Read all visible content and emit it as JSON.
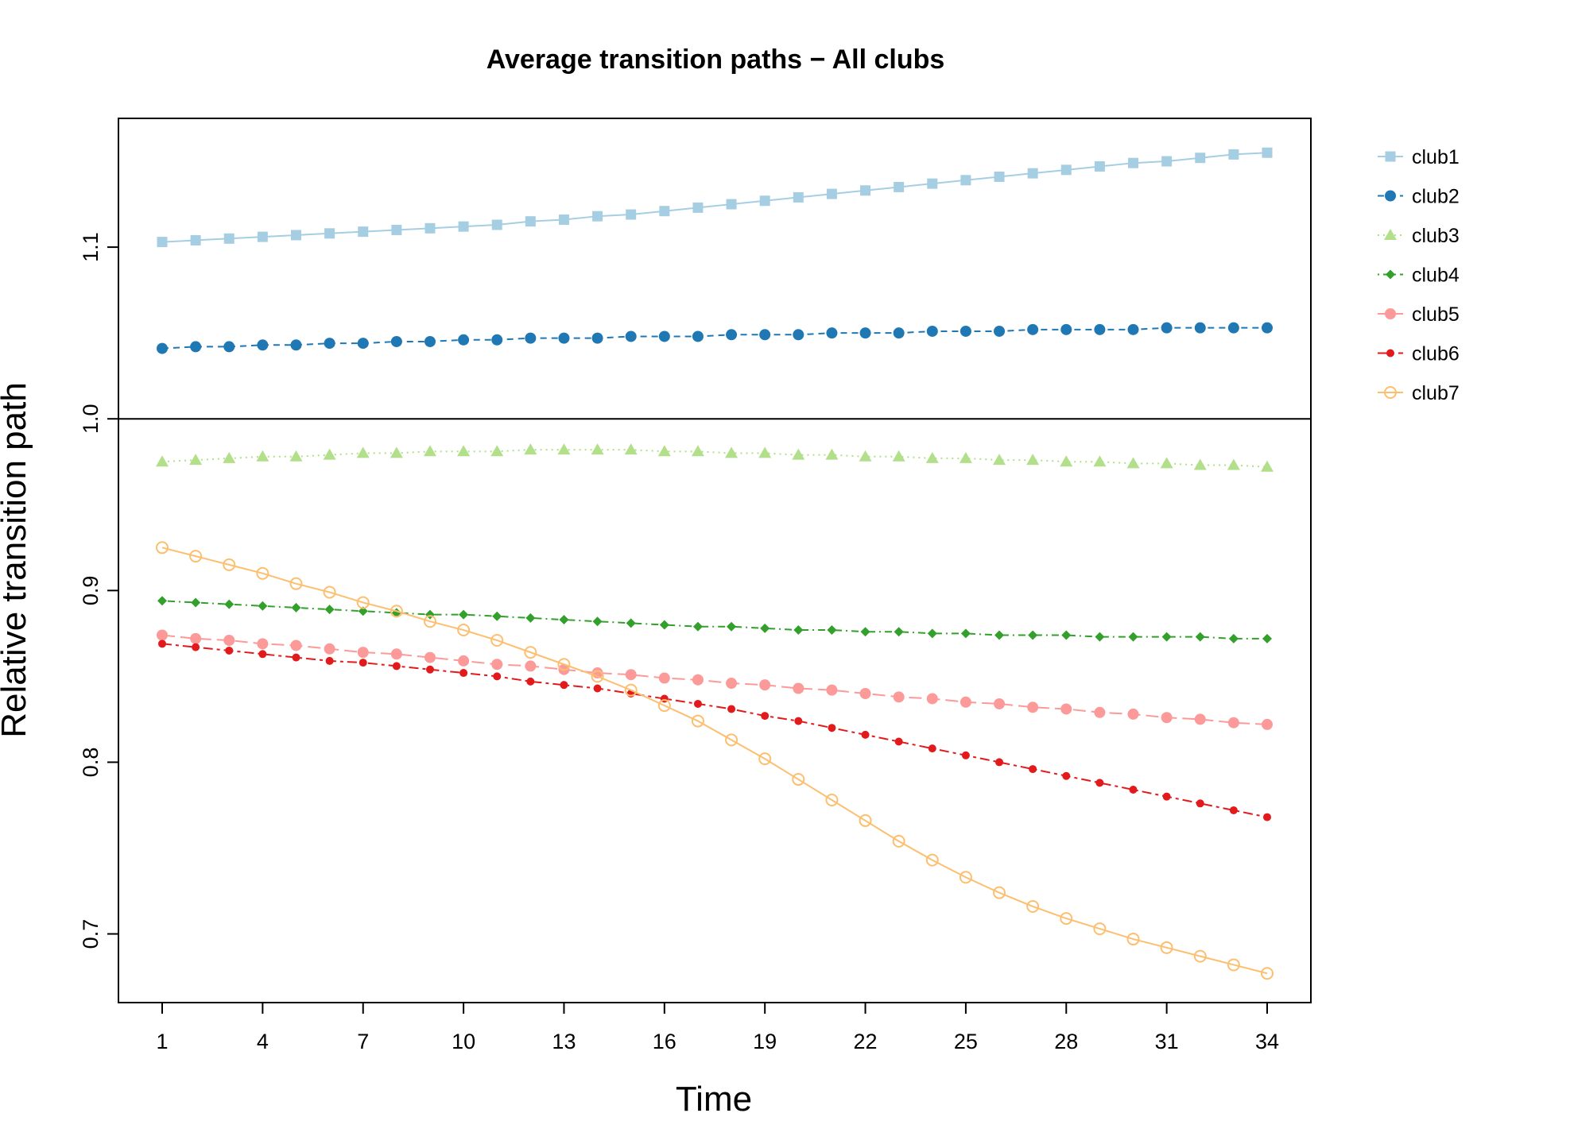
{
  "chart_data": {
    "type": "line",
    "title": "Average transition paths − All clubs",
    "xlabel": "Time",
    "ylabel": "Relative transition path",
    "xlim": [
      1,
      34
    ],
    "ylim": [
      0.66,
      1.175
    ],
    "x_ticks": [
      1,
      4,
      7,
      10,
      13,
      16,
      19,
      22,
      25,
      28,
      31,
      34
    ],
    "y_ticks": [
      0.7,
      0.8,
      0.9,
      1.0,
      1.1
    ],
    "y_tick_labels": [
      "0.7",
      "0.8",
      "0.9",
      "1.0",
      "1.1"
    ],
    "reference_line": 1.0,
    "grid": false,
    "legend_position": "right",
    "x": [
      1,
      2,
      3,
      4,
      5,
      6,
      7,
      8,
      9,
      10,
      11,
      12,
      13,
      14,
      15,
      16,
      17,
      18,
      19,
      20,
      21,
      22,
      23,
      24,
      25,
      26,
      27,
      28,
      29,
      30,
      31,
      32,
      33,
      34
    ],
    "series": [
      {
        "name": "club1",
        "color": "#a6cee3",
        "marker": "square",
        "dash": "solid",
        "values": [
          1.103,
          1.104,
          1.105,
          1.106,
          1.107,
          1.108,
          1.109,
          1.11,
          1.111,
          1.112,
          1.113,
          1.115,
          1.116,
          1.118,
          1.119,
          1.121,
          1.123,
          1.125,
          1.127,
          1.129,
          1.131,
          1.133,
          1.135,
          1.137,
          1.139,
          1.141,
          1.143,
          1.145,
          1.147,
          1.149,
          1.15,
          1.152,
          1.154,
          1.155
        ]
      },
      {
        "name": "club2",
        "color": "#1f78b4",
        "marker": "circle",
        "dash": "dashed",
        "values": [
          1.041,
          1.042,
          1.042,
          1.043,
          1.043,
          1.044,
          1.044,
          1.045,
          1.045,
          1.046,
          1.046,
          1.047,
          1.047,
          1.047,
          1.048,
          1.048,
          1.048,
          1.049,
          1.049,
          1.049,
          1.05,
          1.05,
          1.05,
          1.051,
          1.051,
          1.051,
          1.052,
          1.052,
          1.052,
          1.052,
          1.053,
          1.053,
          1.053,
          1.053
        ]
      },
      {
        "name": "club3",
        "color": "#b2df8a",
        "marker": "triangle",
        "dash": "dotted",
        "values": [
          0.975,
          0.976,
          0.977,
          0.978,
          0.978,
          0.979,
          0.98,
          0.98,
          0.981,
          0.981,
          0.981,
          0.982,
          0.982,
          0.982,
          0.982,
          0.981,
          0.981,
          0.98,
          0.98,
          0.979,
          0.979,
          0.978,
          0.978,
          0.977,
          0.977,
          0.976,
          0.976,
          0.975,
          0.975,
          0.974,
          0.974,
          0.973,
          0.973,
          0.972
        ]
      },
      {
        "name": "club4",
        "color": "#33a02c",
        "marker": "diamond",
        "dash": "dotdash",
        "values": [
          0.894,
          0.893,
          0.892,
          0.891,
          0.89,
          0.889,
          0.888,
          0.887,
          0.886,
          0.886,
          0.885,
          0.884,
          0.883,
          0.882,
          0.881,
          0.88,
          0.879,
          0.879,
          0.878,
          0.877,
          0.877,
          0.876,
          0.876,
          0.875,
          0.875,
          0.874,
          0.874,
          0.874,
          0.873,
          0.873,
          0.873,
          0.873,
          0.872,
          0.872
        ]
      },
      {
        "name": "club5",
        "color": "#fb9a99",
        "marker": "circle",
        "dash": "longdash",
        "values": [
          0.874,
          0.872,
          0.871,
          0.869,
          0.868,
          0.866,
          0.864,
          0.863,
          0.861,
          0.859,
          0.857,
          0.856,
          0.854,
          0.852,
          0.851,
          0.849,
          0.848,
          0.846,
          0.845,
          0.843,
          0.842,
          0.84,
          0.838,
          0.837,
          0.835,
          0.834,
          0.832,
          0.831,
          0.829,
          0.828,
          0.826,
          0.825,
          0.823,
          0.822
        ]
      },
      {
        "name": "club6",
        "color": "#e31a1c",
        "marker": "circle-small",
        "dash": "twodash",
        "values": [
          0.869,
          0.867,
          0.865,
          0.863,
          0.861,
          0.859,
          0.858,
          0.856,
          0.854,
          0.852,
          0.85,
          0.847,
          0.845,
          0.843,
          0.84,
          0.837,
          0.834,
          0.831,
          0.827,
          0.824,
          0.82,
          0.816,
          0.812,
          0.808,
          0.804,
          0.8,
          0.796,
          0.792,
          0.788,
          0.784,
          0.78,
          0.776,
          0.772,
          0.768
        ]
      },
      {
        "name": "club7",
        "color": "#fdbf6f",
        "marker": "circle-open",
        "dash": "solid",
        "values": [
          0.925,
          0.92,
          0.915,
          0.91,
          0.904,
          0.899,
          0.893,
          0.888,
          0.882,
          0.877,
          0.871,
          0.864,
          0.857,
          0.85,
          0.842,
          0.833,
          0.824,
          0.813,
          0.802,
          0.79,
          0.778,
          0.766,
          0.754,
          0.743,
          0.733,
          0.724,
          0.716,
          0.709,
          0.703,
          0.697,
          0.692,
          0.687,
          0.682,
          0.677
        ]
      }
    ]
  }
}
